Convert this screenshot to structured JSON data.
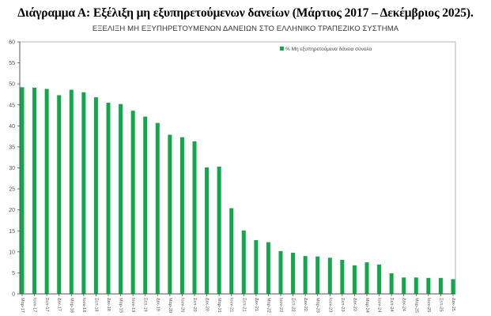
{
  "heading": "Διάγραμμα Α: Εξέλιξη μη εξυπηρετούμενων δανείων (Μάρτιος 2017 – Δεκέμβριος 2025).",
  "chart_data": {
    "type": "bar",
    "title": "ΕΞΕΛΙΞΗ ΜΗ ΕΞΥΠΗΡΕΤΟΥΜΕΝΩΝ ΔΑΝΕΙΩΝ ΣΤΟ ΕΛΛΗΝΙΚΟ ΤΡΑΠΕΖΙΚΟ ΣΥΣΤΗΜΑ",
    "xlabel": "",
    "ylabel": "",
    "ylim": [
      0,
      60
    ],
    "yticks": [
      0,
      5,
      10,
      15,
      20,
      25,
      30,
      35,
      40,
      45,
      50,
      55,
      60
    ],
    "grid": false,
    "legend_position": "top-right",
    "categories": [
      "Μαρ-17",
      "Ιουν-17",
      "Σεπ-17",
      "Δεκ-17",
      "Μαρ-18",
      "Ιουν-18",
      "Σεπ-18",
      "Δεκ-18",
      "Μαρ-19",
      "Ιουν-19",
      "Σεπ-19",
      "Δεκ-19",
      "Μαρ-20",
      "Ιουν-20",
      "Σεπ-20",
      "Δεκ-20",
      "Μαρ-21",
      "Ιουν-21",
      "Σεπ-21",
      "Δεκ-21",
      "Μαρ-22",
      "Ιουν-22",
      "Σεπ-22",
      "Δεκ-22",
      "Μαρ-23",
      "Ιουν-23",
      "Σεπ-23",
      "Δεκ-23",
      "Μαρ-24",
      "Ιουν-24",
      "Σεπ-24",
      "Δεκ-24",
      "Μαρ-25",
      "Ιουν-25",
      "Σεπ-25",
      "Δεκ-25"
    ],
    "series": [
      {
        "name": "% Μη εξυπηρετούμενα δάνεια σύνολο",
        "color": "#10a84a",
        "values": [
          49.2,
          49.1,
          48.8,
          47.3,
          48.6,
          48.0,
          46.8,
          45.5,
          45.2,
          43.6,
          42.2,
          40.7,
          37.9,
          37.3,
          36.3,
          30.1,
          30.3,
          20.4,
          15.1,
          12.8,
          12.3,
          10.2,
          9.8,
          9.0,
          8.9,
          8.6,
          8.1,
          6.8,
          7.5,
          7.0,
          4.9,
          3.9,
          3.9,
          3.8,
          3.8,
          3.5
        ]
      }
    ]
  }
}
